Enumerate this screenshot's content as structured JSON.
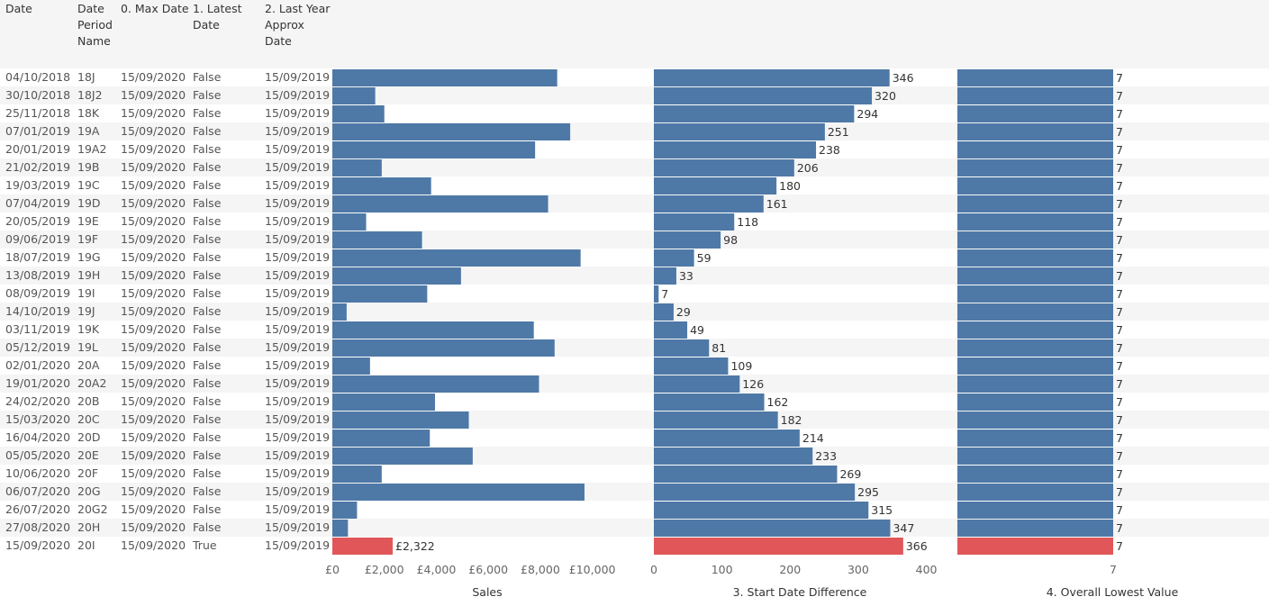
{
  "headers": {
    "date": "Date",
    "period": "Date Period Name",
    "max_date": "0. Max Date",
    "latest": "1. Latest Date",
    "last_year": "2. Last Year Approx Date"
  },
  "colors": {
    "normal": "#4e79a7",
    "highlight": "#e15759"
  },
  "chart_data": {
    "type": "bar",
    "categories": [
      "04/10/2018",
      "30/10/2018",
      "25/11/2018",
      "07/01/2019",
      "20/01/2019",
      "21/02/2019",
      "19/03/2019",
      "07/04/2019",
      "20/05/2019",
      "09/06/2019",
      "18/07/2019",
      "13/08/2019",
      "08/09/2019",
      "14/10/2019",
      "03/11/2019",
      "05/12/2019",
      "02/01/2020",
      "19/01/2020",
      "24/02/2020",
      "15/03/2020",
      "16/04/2020",
      "05/05/2020",
      "10/06/2020",
      "06/07/2020",
      "26/07/2020",
      "27/08/2020",
      "15/09/2020"
    ],
    "period_names": [
      "18J",
      "18J2",
      "18K",
      "19A",
      "19A2",
      "19B",
      "19C",
      "19D",
      "19E",
      "19F",
      "19G",
      "19H",
      "19I",
      "19J",
      "19K",
      "19L",
      "20A",
      "20A2",
      "20B",
      "20C",
      "20D",
      "20E",
      "20F",
      "20G",
      "20G2",
      "20H",
      "20I"
    ],
    "max_dates": [
      "15/09/2020",
      "15/09/2020",
      "15/09/2020",
      "15/09/2020",
      "15/09/2020",
      "15/09/2020",
      "15/09/2020",
      "15/09/2020",
      "15/09/2020",
      "15/09/2020",
      "15/09/2020",
      "15/09/2020",
      "15/09/2020",
      "15/09/2020",
      "15/09/2020",
      "15/09/2020",
      "15/09/2020",
      "15/09/2020",
      "15/09/2020",
      "15/09/2020",
      "15/09/2020",
      "15/09/2020",
      "15/09/2020",
      "15/09/2020",
      "15/09/2020",
      "15/09/2020",
      "15/09/2020"
    ],
    "latest_flags": [
      "False",
      "False",
      "False",
      "False",
      "False",
      "False",
      "False",
      "False",
      "False",
      "False",
      "False",
      "False",
      "False",
      "False",
      "False",
      "False",
      "False",
      "False",
      "False",
      "False",
      "False",
      "False",
      "False",
      "False",
      "False",
      "False",
      "True"
    ],
    "last_year_dates": [
      "15/09/2019",
      "15/09/2019",
      "15/09/2019",
      "15/09/2019",
      "15/09/2019",
      "15/09/2019",
      "15/09/2019",
      "15/09/2019",
      "15/09/2019",
      "15/09/2019",
      "15/09/2019",
      "15/09/2019",
      "15/09/2019",
      "15/09/2019",
      "15/09/2019",
      "15/09/2019",
      "15/09/2019",
      "15/09/2019",
      "15/09/2019",
      "15/09/2019",
      "15/09/2019",
      "15/09/2019",
      "15/09/2019",
      "15/09/2019",
      "15/09/2019",
      "15/09/2019",
      "15/09/2019"
    ],
    "highlight_index": 26,
    "series": [
      {
        "name": "Sales",
        "values": [
          8650,
          1650,
          2000,
          9150,
          7800,
          1900,
          3800,
          8300,
          1300,
          3450,
          9550,
          4950,
          3650,
          550,
          7750,
          8550,
          1450,
          7950,
          3950,
          5250,
          3750,
          5400,
          1900,
          9700,
          950,
          600,
          2322
        ],
        "xlim": [
          0,
          11000
        ],
        "ticks": [
          0,
          2000,
          4000,
          6000,
          8000,
          10000
        ],
        "tick_labels": [
          "£0",
          "£2,000",
          "£4,000",
          "£6,000",
          "£8,000",
          "£10,000"
        ],
        "value_labels": [
          "",
          "",
          "",
          "",
          "",
          "",
          "",
          "",
          "",
          "",
          "",
          "",
          "",
          "",
          "",
          "",
          "",
          "",
          "",
          "",
          "",
          "",
          "",
          "",
          "",
          "",
          "£2,322"
        ],
        "title": "Sales"
      },
      {
        "name": "3. Start Date Difference",
        "values": [
          346,
          320,
          294,
          251,
          238,
          206,
          180,
          161,
          118,
          98,
          59,
          33,
          7,
          29,
          49,
          81,
          109,
          126,
          162,
          182,
          214,
          233,
          269,
          295,
          315,
          347,
          366
        ],
        "xlim": [
          0,
          420
        ],
        "ticks": [
          0,
          100,
          200,
          300,
          400
        ],
        "tick_labels": [
          "0",
          "100",
          "200",
          "300",
          "400"
        ],
        "value_labels": [
          "346",
          "320",
          "294",
          "251",
          "238",
          "206",
          "180",
          "161",
          "118",
          "98",
          "59",
          "33",
          "7",
          "29",
          "49",
          "81",
          "109",
          "126",
          "162",
          "182",
          "214",
          "233",
          "269",
          "295",
          "315",
          "347",
          "366"
        ],
        "title": "3. Start Date Difference"
      },
      {
        "name": "4. Overall Lowest Value",
        "values": [
          7,
          7,
          7,
          7,
          7,
          7,
          7,
          7,
          7,
          7,
          7,
          7,
          7,
          7,
          7,
          7,
          7,
          7,
          7,
          7,
          7,
          7,
          7,
          7,
          7,
          7,
          7
        ],
        "xlim": [
          0,
          7
        ],
        "ticks": [
          7
        ],
        "tick_labels": [
          "7"
        ],
        "value_labels": [
          "7",
          "7",
          "7",
          "7",
          "7",
          "7",
          "7",
          "7",
          "7",
          "7",
          "7",
          "7",
          "7",
          "7",
          "7",
          "7",
          "7",
          "7",
          "7",
          "7",
          "7",
          "7",
          "7",
          "7",
          "7",
          "7",
          "7"
        ],
        "title": "4. Overall Lowest Value"
      }
    ]
  }
}
